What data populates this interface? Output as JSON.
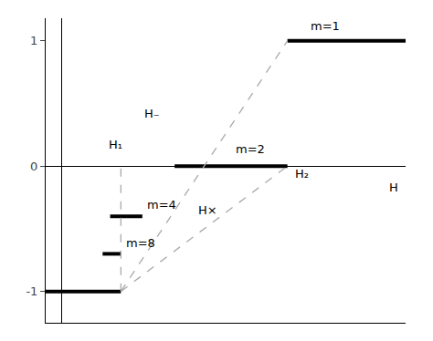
{
  "chart_data": {
    "type": "line",
    "xlim": [
      -0.15,
      3.2
    ],
    "ylim": [
      -1.25,
      1.18
    ],
    "yticks": [
      -1,
      0,
      1
    ],
    "tick_labels": "y",
    "grid": false,
    "series": [
      {
        "x": [
          2.1,
          3.2
        ],
        "values": [
          1.0,
          1.0
        ],
        "color": "black",
        "line_style": "solid"
      },
      {
        "x": [
          1.05,
          2.1
        ],
        "values": [
          0.0,
          0.0
        ],
        "color": "black",
        "line_style": "solid"
      },
      {
        "x": [
          0.45,
          0.75
        ],
        "values": [
          -0.4,
          -0.4
        ],
        "color": "black",
        "line_style": "solid"
      },
      {
        "x": [
          0.38,
          0.55
        ],
        "values": [
          -0.7,
          -0.7
        ],
        "color": "black",
        "line_style": "solid"
      },
      {
        "x": [
          -0.15,
          0.55
        ],
        "values": [
          -1.0,
          -1.0
        ],
        "color": "black",
        "line_style": "solid"
      },
      {
        "x": [
          0.55,
          2.1
        ],
        "values": [
          -1.0,
          1.0
        ],
        "color": "#aaaaaa",
        "line_style": "dashed"
      },
      {
        "x": [
          0.55,
          2.1
        ],
        "values": [
          -1.0,
          0.0
        ],
        "color": "#aaaaaa",
        "line_style": "dashed"
      },
      {
        "x": [
          0.55,
          0.55
        ],
        "values": [
          -1.0,
          0.0
        ],
        "color": "#aaaaaa",
        "line_style": "dashed"
      }
    ],
    "annotations": [
      {
        "text": "m=1",
        "x": 2.3,
        "y": 1.05
      },
      {
        "text": "m=2",
        "x": 1.6,
        "y": 0.07
      },
      {
        "text": "m=4",
        "x": 0.78,
        "y": -0.38
      },
      {
        "text": "m=8",
        "x": 0.58,
        "y": -0.68
      },
      {
        "text": "H₋",
        "x": 0.75,
        "y": 0.35
      },
      {
        "text": "H×",
        "x": 1.25,
        "y": -0.42
      },
      {
        "text": "H₁",
        "x": 0.42,
        "y": 0.1
      },
      {
        "text": "H₂",
        "x": 2.15,
        "y": -0.13
      },
      {
        "text": "H",
        "x": 3.15,
        "y": -0.1
      }
    ]
  }
}
